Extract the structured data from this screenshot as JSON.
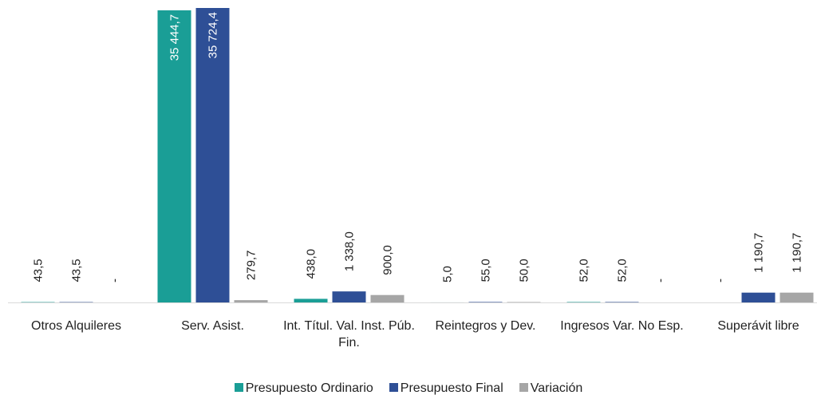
{
  "chart_data": {
    "type": "bar",
    "categories": [
      "Otros Alquileres",
      "Serv. Asist.",
      "Int. Títul. Val. Inst. Púb. Fin.",
      "Reintegros y Dev.",
      "Ingresos Var. No Esp.",
      "Superávit libre"
    ],
    "series": [
      {
        "name": "Presupuesto Ordinario",
        "color": "#1a9e96",
        "values": [
          43.5,
          35444.7,
          438.0,
          5.0,
          52.0,
          0
        ],
        "value_labels": [
          "43,5",
          "35 444,7",
          "438,0",
          "5,0",
          "52,0",
          "-"
        ]
      },
      {
        "name": "Presupuesto Final",
        "color": "#2e4f96",
        "values": [
          43.5,
          35724.4,
          1338.0,
          55.0,
          52.0,
          1190.7
        ],
        "value_labels": [
          "43,5",
          "35 724,4",
          "1 338,0",
          "55,0",
          "52,0",
          "1 190,7"
        ]
      },
      {
        "name": "Variación",
        "color": "#a6a6a6",
        "values": [
          0,
          279.7,
          900.0,
          50.0,
          0,
          1190.7
        ],
        "value_labels": [
          "-",
          "279,7",
          "900,0",
          "50,0",
          "-",
          "1 190,7"
        ]
      }
    ]
  }
}
